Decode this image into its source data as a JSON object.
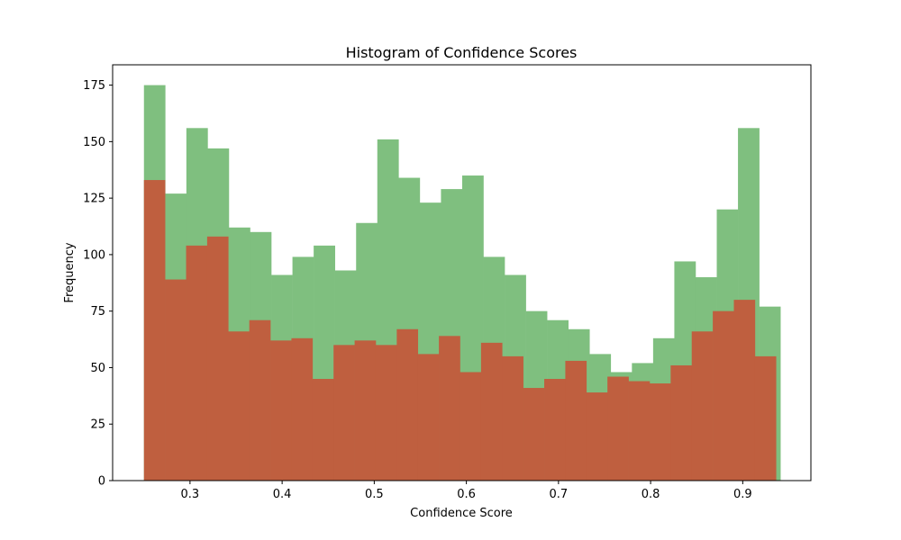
{
  "chart_data": {
    "type": "bar",
    "title": "Histogram of Confidence Scores",
    "xlabel": "Confidence Score",
    "ylabel": "Frequency",
    "xlim": [
      0.216,
      0.974
    ],
    "ylim": [
      0,
      184
    ],
    "x_ticks": [
      0.3,
      0.4,
      0.5,
      0.6,
      0.7,
      0.8,
      0.9
    ],
    "x_tick_labels": [
      "0.3",
      "0.4",
      "0.5",
      "0.6",
      "0.7",
      "0.8",
      "0.9"
    ],
    "y_ticks": [
      0,
      25,
      50,
      75,
      100,
      125,
      150,
      175
    ],
    "y_tick_labels": [
      "0",
      "25",
      "50",
      "75",
      "100",
      "125",
      "150",
      "175"
    ],
    "legend": "none",
    "grid": false,
    "series": [
      {
        "color": "#7fbf7f",
        "bin_start": 0.25,
        "bin_width": 0.02303,
        "values": [
          175,
          127,
          156,
          147,
          112,
          110,
          91,
          99,
          104,
          93,
          114,
          151,
          134,
          123,
          129,
          135,
          99,
          91,
          75,
          71,
          67,
          56,
          48,
          52,
          63,
          97,
          90,
          120,
          156,
          77
        ]
      },
      {
        "color": "#bf5f3f",
        "bin_start": 0.25,
        "bin_width": 0.02287,
        "values": [
          133,
          89,
          104,
          108,
          66,
          71,
          62,
          63,
          45,
          60,
          62,
          60,
          67,
          56,
          64,
          48,
          61,
          55,
          41,
          45,
          53,
          39,
          46,
          44,
          43,
          51,
          66,
          75,
          80,
          55
        ]
      }
    ]
  }
}
